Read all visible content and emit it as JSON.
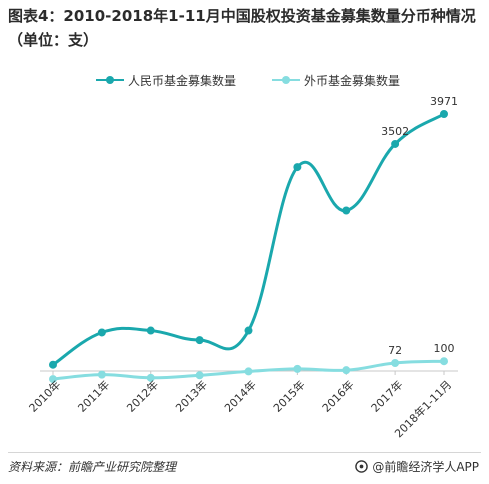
{
  "chart_data": {
    "type": "line",
    "title": "图表4：2010-2018年1-11月中国股权投资基金募集数量分币种情况（单位：支）",
    "categories": [
      "2010年",
      "2011年",
      "2012年",
      "2013年",
      "2014年",
      "2015年",
      "2016年",
      "2017年",
      "2018年1-11月"
    ],
    "series": [
      {
        "name": "人民币基金募集数量",
        "color": "#1aa8ad",
        "values": [
          45,
          550,
          580,
          430,
          580,
          3140,
          2460,
          3502,
          3971
        ]
      },
      {
        "name": "外币基金募集数量",
        "color": "#86dde0",
        "values": [
          -180,
          -110,
          -160,
          -120,
          -60,
          -20,
          -40,
          72,
          100
        ]
      }
    ],
    "data_labels": [
      {
        "series": 0,
        "index": 7,
        "text": "3502"
      },
      {
        "series": 0,
        "index": 8,
        "text": "3971"
      },
      {
        "series": 1,
        "index": 7,
        "text": "72"
      },
      {
        "series": 1,
        "index": 8,
        "text": "100"
      }
    ],
    "legend_position": "top",
    "grid": false
  },
  "footer": {
    "source": "资料来源：前瞻产业研究院整理",
    "brand": "@前瞻经济学人APP"
  }
}
